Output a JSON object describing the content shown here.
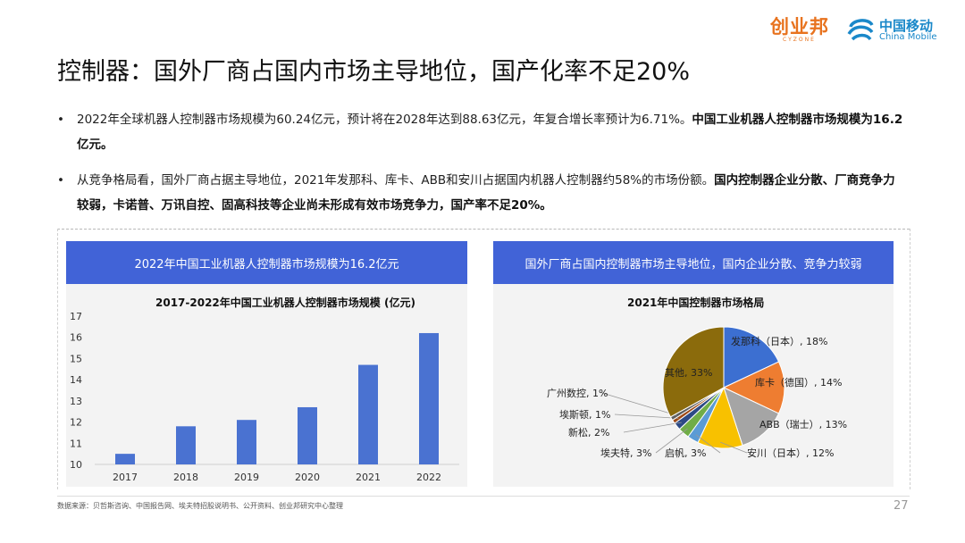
{
  "logos": {
    "brand1_main": "创业邦",
    "brand1_sub": "CYZONE",
    "brand2_cn": "中国移动",
    "brand2_en": "China Mobile"
  },
  "title": "控制器：国外厂商占国内市场主导地位，国产化率不足20%",
  "bullets": [
    {
      "dot": "•",
      "text": "2022年全球机器人控制器市场规模为60.24亿元，预计将在2028年达到88.63亿元，年复合增长率预计为6.71%。",
      "bold": "中国工业机器人控制器市场规模为16.2亿元。"
    },
    {
      "dot": "•",
      "text": "从竞争格局看，国外厂商占据主导地位，2021年发那科、库卡、ABB和安川占据国内机器人控制器约58%的市场份额。",
      "bold": "国内控制器企业分散、厂商竞争力较弱，卡诺普、万讯自控、固高科技等企业尚未形成有效市场竞争力，国产率不足20%。"
    }
  ],
  "left_panel": {
    "header": "2022年中国工业机器人控制器市场规模为16.2亿元",
    "chart_title": "2017-2022年中国工业机器人控制器市场规模 (亿元)"
  },
  "right_panel": {
    "header": "国外厂商占国内控制器市场主导地位，国内企业分散、竞争力较弱",
    "chart_title": "2021年中国控制器市场格局"
  },
  "chart_data": [
    {
      "type": "bar",
      "title": "2017-2022年中国工业机器人控制器市场规模 (亿元)",
      "categories": [
        "2017",
        "2018",
        "2019",
        "2020",
        "2021",
        "2022"
      ],
      "values": [
        10.5,
        11.8,
        12.1,
        12.7,
        14.7,
        16.2
      ],
      "ylim": [
        10,
        17
      ],
      "yticks": [
        10,
        11,
        12,
        13,
        14,
        15,
        16,
        17
      ],
      "color": "#4a72d1",
      "grid": false
    },
    {
      "type": "pie",
      "title": "2021年中国控制器市场格局",
      "slices": [
        {
          "label": "发那科（日本）, 18%",
          "value": 18,
          "color": "#3c6fd1"
        },
        {
          "label": "库卡（德国）, 14%",
          "value": 14,
          "color": "#ee7d31"
        },
        {
          "label": "ABB（瑞士）, 13%",
          "value": 13,
          "color": "#a5a5a5"
        },
        {
          "label": "安川（日本）, 12%",
          "value": 12,
          "color": "#f8c100"
        },
        {
          "label": "启帆, 3%",
          "value": 3,
          "color": "#5b9bd5"
        },
        {
          "label": "埃夫特, 3%",
          "value": 3,
          "color": "#70ad47"
        },
        {
          "label": "新松, 2%",
          "value": 2,
          "color": "#2d4a86"
        },
        {
          "label": "埃斯顿, 1%",
          "value": 1,
          "color": "#9e4a16"
        },
        {
          "label": "广州数控, 1%",
          "value": 1,
          "color": "#5f5f5f"
        },
        {
          "label": "其他, 33%",
          "value": 33,
          "color": "#8b6b0c"
        }
      ]
    }
  ],
  "source": "数据来源：贝哲斯咨询、中国报告网、埃夫特招股说明书、公开资料、创业邦研究中心整理",
  "page_number": "27"
}
